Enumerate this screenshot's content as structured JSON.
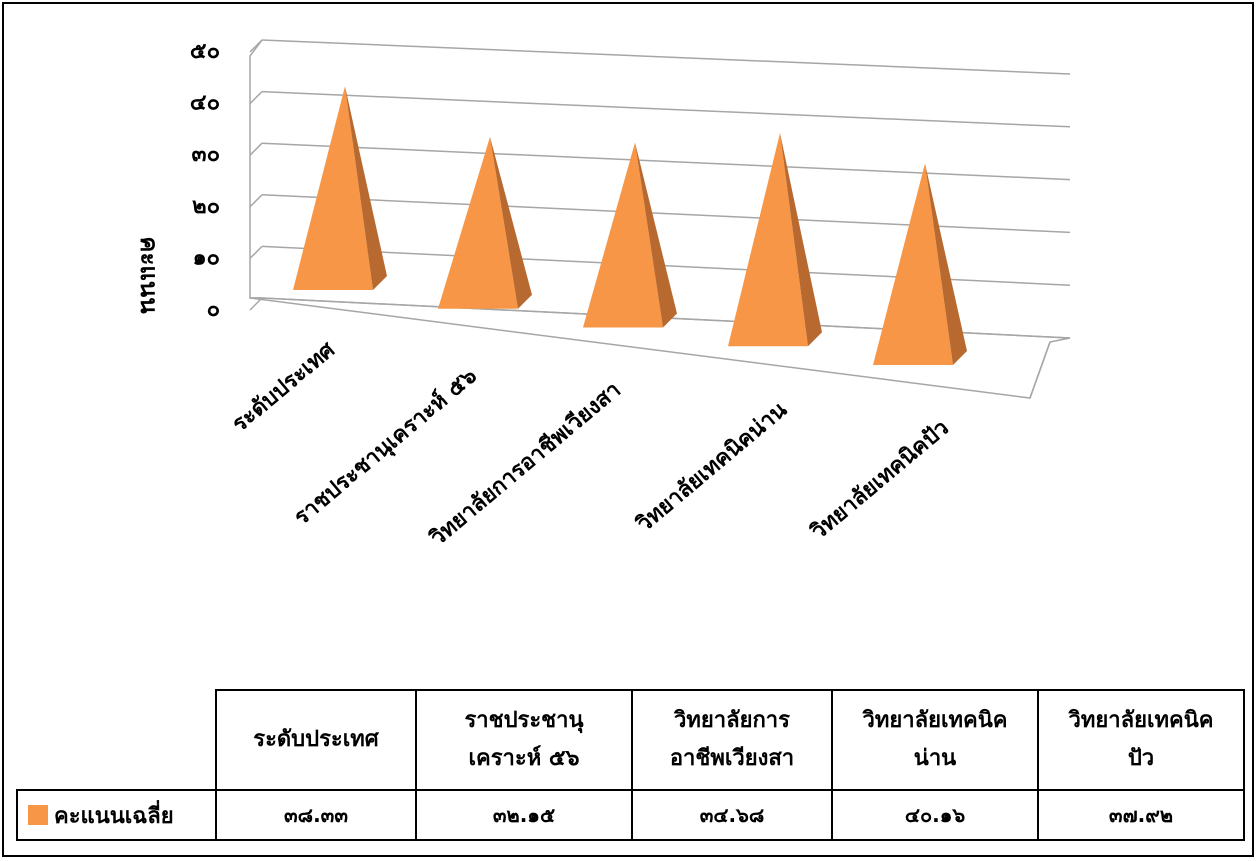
{
  "chart_data": {
    "type": "bar",
    "style": "3d-pyramid",
    "ylabel": "คะแนน",
    "ylim": [
      0,
      50
    ],
    "yticks": [
      "๐",
      "๑๐",
      "๒๐",
      "๓๐",
      "๔๐",
      "๕๐"
    ],
    "categories": [
      "ระดับประเทศ",
      "ราชประชานุเคราะห์ ๕๖",
      "วิทยาลัยการอาชีพเวียงสา",
      "วิทยาลัยเทคนิคน่าน",
      "วิทยาลัยเทคนิคปัว"
    ],
    "table_headers": [
      [
        "ระดับประเทศ"
      ],
      [
        "ราชประชานุ",
        "เคราะห์ ๕๖"
      ],
      [
        "วิทยาลัยการ",
        "อาชีพเวียงสา"
      ],
      [
        "วิทยาลัยเทคนิค",
        "น่าน"
      ],
      [
        "วิทยาลัยเทคนิค",
        "ปัว"
      ]
    ],
    "series": [
      {
        "name": "คะแนนเฉลี่ย",
        "values": [
          38.33,
          32.15,
          34.68,
          40.16,
          37.92
        ],
        "labels": [
          "๓๘.๓๓",
          "๓๒.๑๕",
          "๓๔.๖๘",
          "๔๐.๑๖",
          "๓๗.๙๒"
        ]
      }
    ],
    "colors": {
      "front": "#f79646",
      "side": "#b8692f",
      "grid": "#a6a6a6"
    },
    "grid": true,
    "legend": "data-table"
  }
}
